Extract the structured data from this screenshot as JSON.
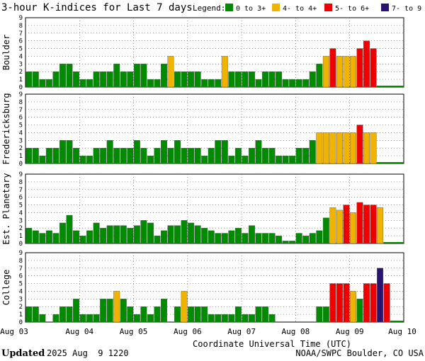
{
  "title": "3-hour K-indices for Last 7 days",
  "legend": {
    "label": "Legend:",
    "items": [
      {
        "text": "0 to 3+",
        "color": "#008b00"
      },
      {
        "text": "4- to 4+",
        "color": "#f0b400"
      },
      {
        "text": "5- to 6+",
        "color": "#ee0000"
      },
      {
        "text": "7- to 9",
        "color": "#2a1273"
      }
    ]
  },
  "colors": {
    "quiet": "#008b00",
    "active": "#f0b400",
    "storm": "#ee0000",
    "severe": "#2a1273",
    "grid": "#555555",
    "baseline": "#008b00"
  },
  "footer": {
    "updated_label": "Updated",
    "updated_value": "2025 Aug  9 1220",
    "source": "NOAA/SWPC Boulder, CO USA"
  },
  "chart_data": {
    "type": "bar",
    "xlabel": "Coordinate Universal Time (UTC)",
    "x_ticks": [
      "Aug 03",
      "Aug 04",
      "Aug 05",
      "Aug 06",
      "Aug 07",
      "Aug 08",
      "Aug 09",
      "Aug 10"
    ],
    "y_ticks": [
      "0",
      "1",
      "2",
      "3",
      "4",
      "5",
      "6",
      "7",
      "8",
      "9"
    ],
    "ylim": [
      0,
      9
    ],
    "intervals_per_day": 8,
    "thresholds": {
      "active": 4,
      "storm": 5,
      "severe": 7
    },
    "grid": true,
    "legend_position": "top-right",
    "panels": [
      {
        "name": "Boulder",
        "values": [
          2,
          2,
          1,
          1,
          2,
          3,
          3,
          2,
          1,
          1,
          2,
          2,
          2,
          3,
          2,
          2,
          3,
          3,
          1,
          1,
          3,
          4,
          2,
          2,
          2,
          2,
          1,
          1,
          1,
          4,
          2,
          2,
          2,
          2,
          1,
          2,
          2,
          2,
          1,
          1,
          1,
          1,
          2,
          3,
          4,
          5,
          4,
          4,
          4,
          5,
          6,
          5
        ],
        "total_intervals": 56
      },
      {
        "name": "Fredericksburg",
        "values": [
          2,
          2,
          1,
          2,
          2,
          3,
          3,
          2,
          1,
          1,
          2,
          2,
          3,
          2,
          2,
          2,
          3,
          2,
          1,
          2,
          3,
          2,
          3,
          2,
          2,
          2,
          1,
          2,
          3,
          3,
          1,
          2,
          1,
          2,
          3,
          2,
          2,
          1,
          1,
          1,
          2,
          2,
          3,
          4,
          4,
          4,
          4,
          4,
          4,
          5,
          4,
          4
        ],
        "total_intervals": 56
      },
      {
        "name": "Est. Planetary",
        "values": [
          2,
          1.67,
          1.33,
          1.67,
          1.33,
          2.67,
          3.67,
          1.67,
          1,
          1.67,
          2.67,
          2,
          2.33,
          2.33,
          2.33,
          2,
          2.33,
          3,
          2.67,
          1,
          1.67,
          2.33,
          2.33,
          3,
          2.67,
          2.33,
          2,
          1.67,
          1.33,
          1.33,
          1.67,
          2,
          1.33,
          2.33,
          1.33,
          1.33,
          1.33,
          1,
          0.33,
          0.33,
          1.33,
          1,
          1.33,
          1.67,
          3.33,
          4.67,
          4.33,
          5,
          4,
          5.33,
          5,
          5,
          4.67
        ],
        "total_intervals": 56
      },
      {
        "name": "College",
        "values": [
          2,
          2,
          1,
          0,
          1,
          2,
          2,
          3,
          1,
          1,
          1,
          3,
          3,
          4,
          3,
          2,
          1,
          2,
          1,
          2,
          3,
          0,
          2,
          4,
          2,
          2,
          2,
          1,
          1,
          1,
          1,
          2,
          1,
          1,
          2,
          2,
          1,
          0,
          0,
          0,
          0,
          0,
          0,
          2,
          2,
          5,
          5,
          5,
          4,
          3,
          5,
          5,
          7,
          5
        ],
        "total_intervals": 56
      }
    ]
  }
}
